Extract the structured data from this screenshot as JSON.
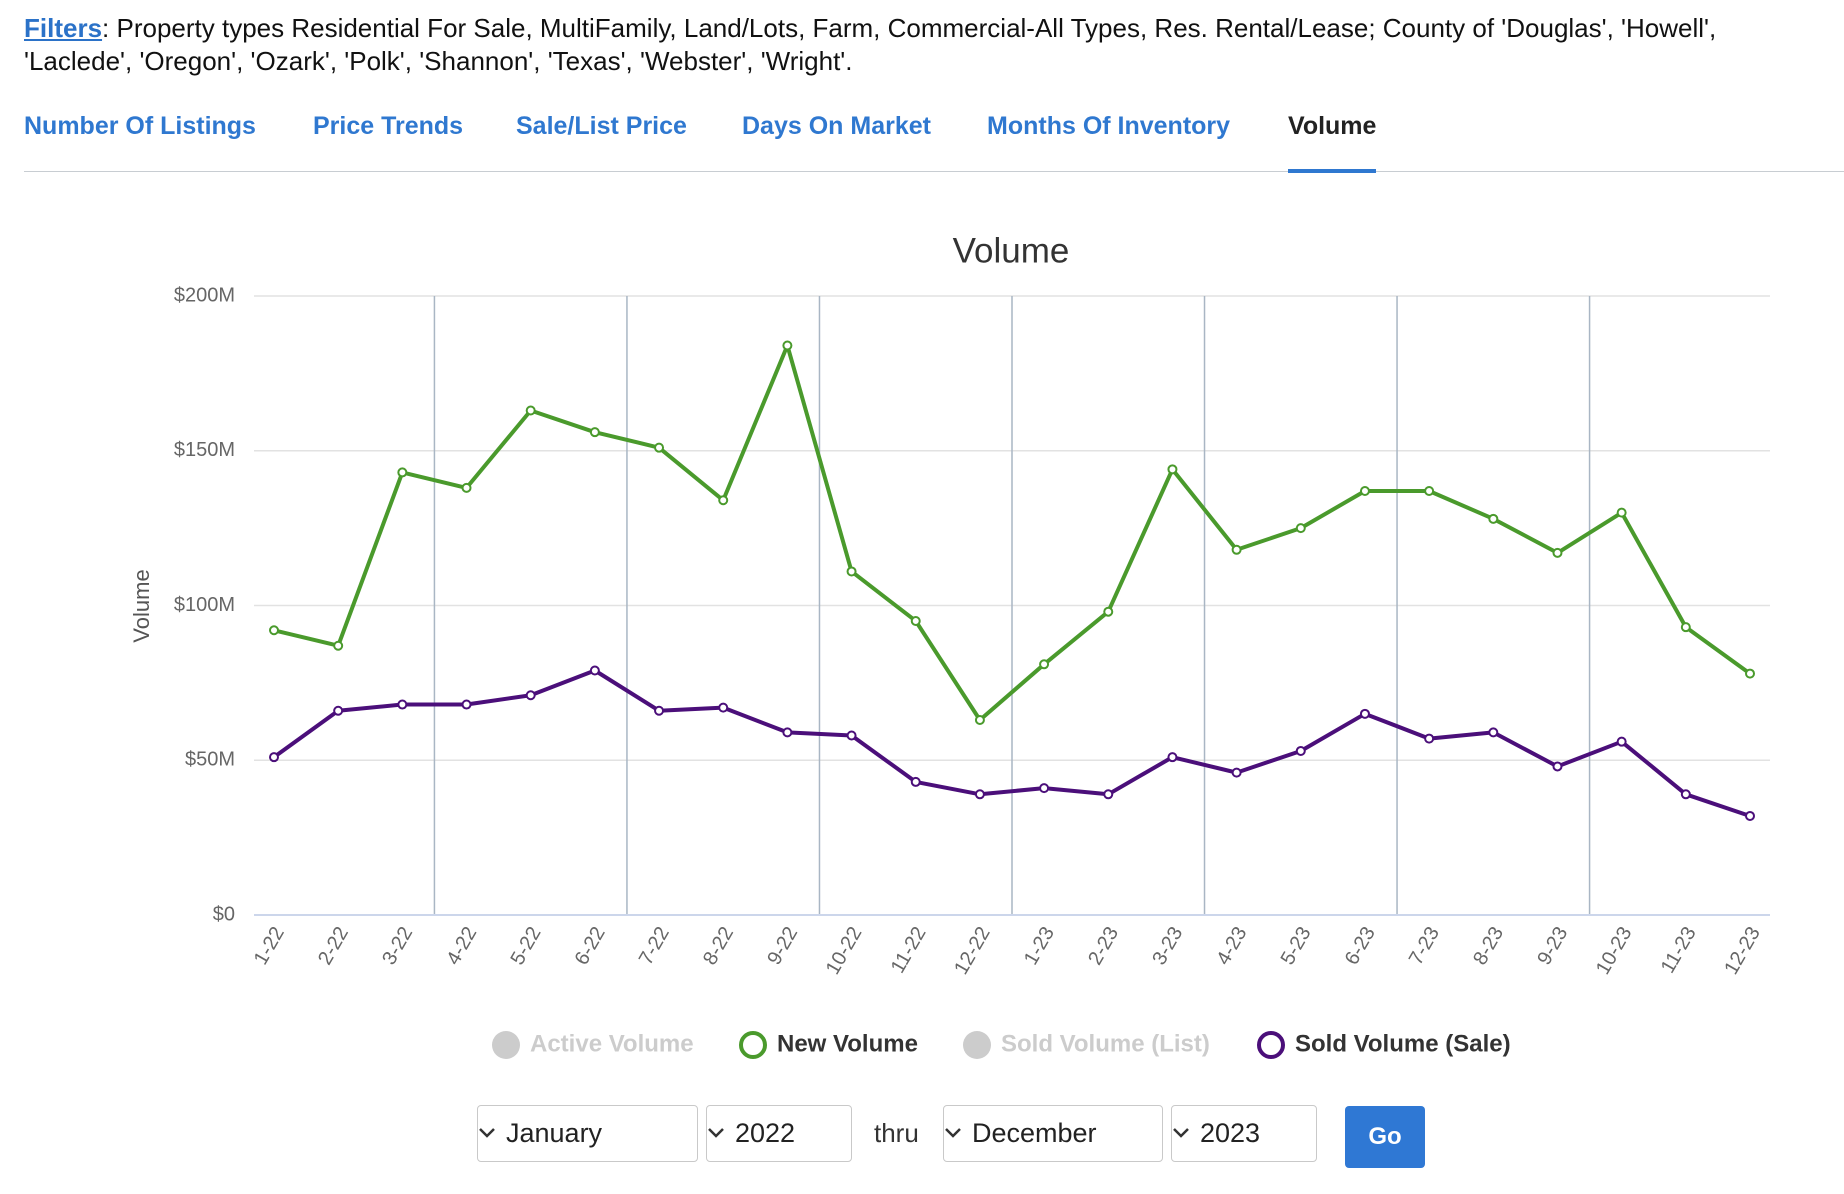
{
  "header": {
    "filters_label": "Filters",
    "filters_text": ": Property types Residential For Sale, MultiFamily, Land/Lots, Farm, Commercial-All Types, Res. Rental/Lease; County of 'Douglas', 'Howell', 'Laclede', 'Oregon', 'Ozark', 'Polk', 'Shannon', 'Texas', 'Webster', 'Wright'."
  },
  "tabs": {
    "items": [
      "Number Of Listings",
      "Price Trends",
      "Sale/List Price",
      "Days On Market",
      "Months Of Inventory",
      "Volume"
    ],
    "active": 5
  },
  "chart_data": {
    "type": "line",
    "title": "Volume",
    "y_label": "Volume",
    "categories": [
      "1-22",
      "2-22",
      "3-22",
      "4-22",
      "5-22",
      "6-22",
      "7-22",
      "8-22",
      "9-22",
      "10-22",
      "11-22",
      "12-22",
      "1-23",
      "2-23",
      "3-23",
      "4-23",
      "5-23",
      "6-23",
      "7-23",
      "8-23",
      "9-23",
      "10-23",
      "11-23",
      "12-23"
    ],
    "ylim": [
      0,
      200000000
    ],
    "yticks": [
      {
        "value": 0,
        "label": "$0"
      },
      {
        "value": 50000000,
        "label": "$50M"
      },
      {
        "value": 100000000,
        "label": "$100M"
      },
      {
        "value": 150000000,
        "label": "$150M"
      },
      {
        "value": 200000000,
        "label": "$200M"
      }
    ],
    "grid": true,
    "series": [
      {
        "name": "Active Volume",
        "color": "#cccccc",
        "visible": false,
        "values": [
          null,
          null,
          null,
          null,
          null,
          null,
          null,
          null,
          null,
          null,
          null,
          null,
          null,
          null,
          null,
          null,
          null,
          null,
          null,
          null,
          null,
          null,
          null,
          null
        ]
      },
      {
        "name": "New Volume",
        "color": "#4a9a2c",
        "visible": true,
        "values": [
          92000000,
          87000000,
          143000000,
          138000000,
          163000000,
          156000000,
          151000000,
          134000000,
          184000000,
          111000000,
          95000000,
          63000000,
          81000000,
          98000000,
          144000000,
          118000000,
          125000000,
          137000000,
          137000000,
          128000000,
          117000000,
          130000000,
          93000000,
          78000000
        ]
      },
      {
        "name": "Sold Volume (List)",
        "color": "#cccccc",
        "visible": false,
        "values": [
          null,
          null,
          null,
          null,
          null,
          null,
          null,
          null,
          null,
          null,
          null,
          null,
          null,
          null,
          null,
          null,
          null,
          null,
          null,
          null,
          null,
          null,
          null,
          null
        ]
      },
      {
        "name": "Sold Volume (Sale)",
        "color": "#4b0f7a",
        "visible": true,
        "values": [
          51000000,
          66000000,
          68000000,
          68000000,
          71000000,
          79000000,
          66000000,
          67000000,
          59000000,
          58000000,
          43000000,
          39000000,
          41000000,
          39000000,
          51000000,
          46000000,
          53000000,
          65000000,
          57000000,
          59000000,
          48000000,
          56000000,
          39000000,
          32000000
        ]
      }
    ]
  },
  "controls": {
    "start_month": "January",
    "start_year": "2022",
    "thru": "thru",
    "end_month": "December",
    "end_year": "2023",
    "button": "Go"
  }
}
